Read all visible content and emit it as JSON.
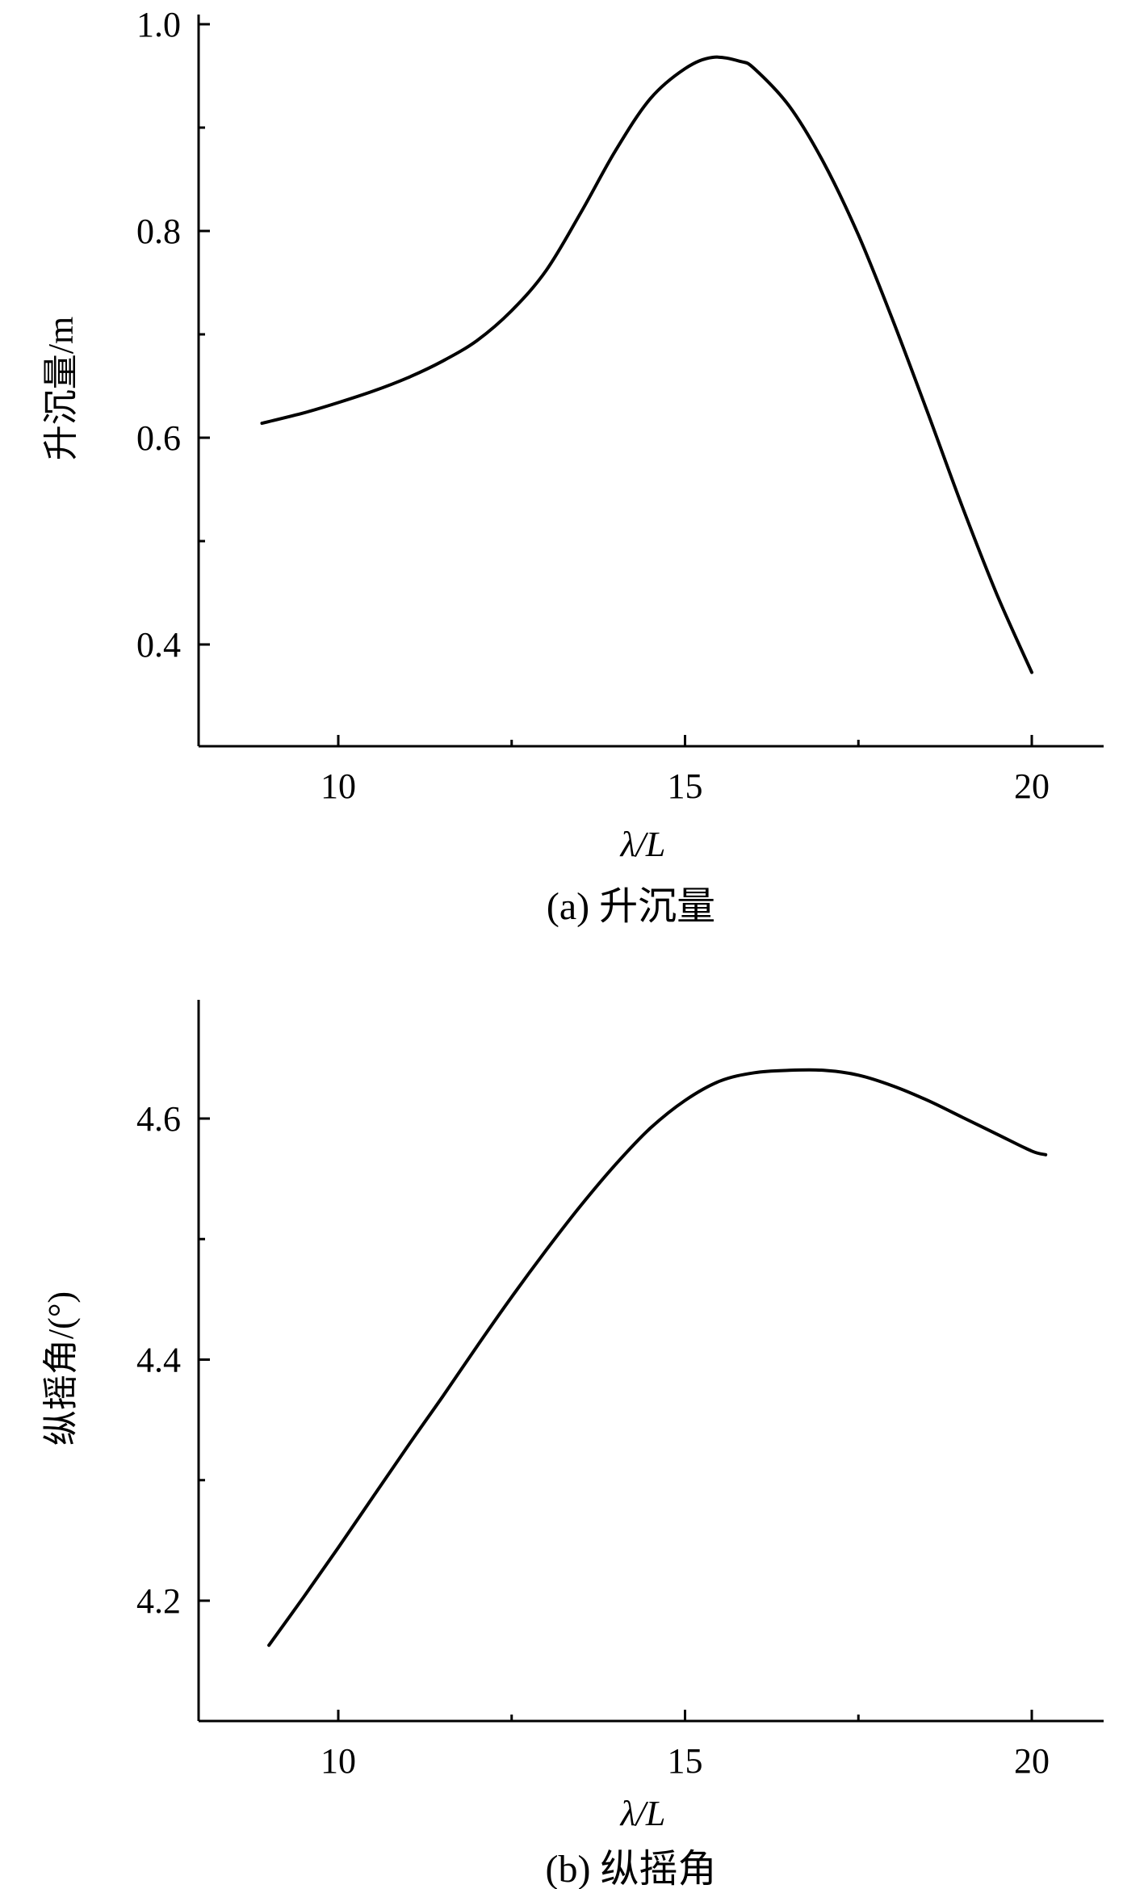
{
  "chart_data": [
    {
      "type": "line",
      "caption": "(a) 升沉量",
      "xlabel": "λ/L",
      "ylabel": "升沉量/m",
      "xlim": [
        8,
        21
      ],
      "ylim": [
        0.3,
        1.0
      ],
      "xticks": [
        10,
        15,
        20
      ],
      "xtick_labels": [
        "10",
        "15",
        "20"
      ],
      "yticks": [
        0.4,
        0.6,
        0.8,
        1.0
      ],
      "ytick_labels": [
        "0.4",
        "0.6",
        "0.8",
        "1.0"
      ],
      "grid": false,
      "series": [
        {
          "x": [
            8.9,
            9.5,
            10.0,
            10.5,
            11.0,
            11.5,
            12.0,
            12.5,
            13.0,
            13.5,
            14.0,
            14.5,
            15.0,
            15.4,
            15.8,
            16.0,
            16.5,
            17.0,
            17.5,
            18.0,
            18.5,
            19.0,
            19.5,
            20.0
          ],
          "y": [
            0.614,
            0.624,
            0.634,
            0.645,
            0.658,
            0.674,
            0.694,
            0.723,
            0.762,
            0.818,
            0.878,
            0.928,
            0.957,
            0.968,
            0.964,
            0.957,
            0.921,
            0.866,
            0.796,
            0.713,
            0.624,
            0.533,
            0.448,
            0.373
          ]
        }
      ]
    },
    {
      "type": "line",
      "caption": "(b) 纵摇角",
      "xlabel": "λ/L",
      "ylabel": "纵摇角/(°)",
      "xlim": [
        8,
        21
      ],
      "ylim": [
        4.1,
        4.7
      ],
      "xticks": [
        10,
        15,
        20
      ],
      "xtick_labels": [
        "10",
        "15",
        "20"
      ],
      "yticks": [
        4.2,
        4.4,
        4.6
      ],
      "ytick_labels": [
        "4.2",
        "4.4",
        "4.6"
      ],
      "grid": false,
      "series": [
        {
          "x": [
            9.0,
            9.5,
            10.0,
            10.5,
            11.0,
            11.5,
            12.0,
            12.5,
            13.0,
            13.5,
            14.0,
            14.5,
            15.0,
            15.5,
            16.0,
            16.5,
            17.0,
            17.5,
            18.0,
            18.5,
            19.0,
            19.5,
            20.0,
            20.2
          ],
          "y": [
            4.163,
            4.203,
            4.244,
            4.286,
            4.328,
            4.369,
            4.411,
            4.452,
            4.491,
            4.528,
            4.562,
            4.592,
            4.615,
            4.631,
            4.638,
            4.64,
            4.64,
            4.636,
            4.627,
            4.615,
            4.601,
            4.587,
            4.573,
            4.57
          ]
        }
      ]
    }
  ]
}
